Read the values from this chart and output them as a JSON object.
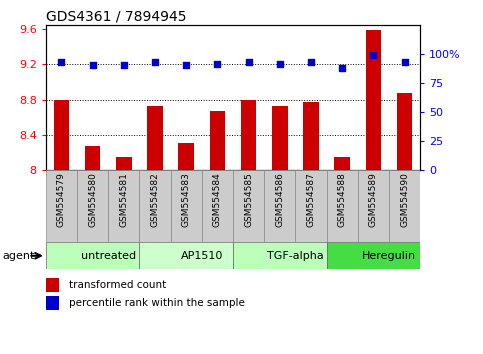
{
  "title": "GDS4361 / 7894945",
  "samples": [
    "GSM554579",
    "GSM554580",
    "GSM554581",
    "GSM554582",
    "GSM554583",
    "GSM554584",
    "GSM554585",
    "GSM554586",
    "GSM554587",
    "GSM554588",
    "GSM554589",
    "GSM554590"
  ],
  "bar_values": [
    8.8,
    8.27,
    8.15,
    8.73,
    8.31,
    8.67,
    8.79,
    8.73,
    8.77,
    8.15,
    9.59,
    8.88
  ],
  "blue_dot_values": [
    93,
    90,
    90,
    93,
    90,
    91,
    93,
    91,
    93,
    88,
    99,
    93
  ],
  "bar_color": "#cc0000",
  "dot_color": "#0000cc",
  "ylim_left": [
    8.0,
    9.65
  ],
  "ylim_right": [
    0,
    125
  ],
  "yticks_left": [
    8.0,
    8.4,
    8.8,
    9.2,
    9.6
  ],
  "ytick_labels_left": [
    "8",
    "8.4",
    "8.8",
    "9.2",
    "9.6"
  ],
  "yticks_right": [
    0,
    25,
    50,
    75,
    100
  ],
  "ytick_labels_right": [
    "0",
    "25",
    "50",
    "75",
    "100%"
  ],
  "grid_values": [
    8.4,
    8.8,
    9.2
  ],
  "groups": [
    {
      "label": "untreated",
      "start": 0,
      "end": 3,
      "color": "#bbffbb"
    },
    {
      "label": "AP1510",
      "start": 3,
      "end": 6,
      "color": "#ccffcc"
    },
    {
      "label": "TGF-alpha",
      "start": 6,
      "end": 9,
      "color": "#bbffbb"
    },
    {
      "label": "Heregulin",
      "start": 9,
      "end": 12,
      "color": "#44dd44"
    }
  ],
  "legend_bar_label": "transformed count",
  "legend_dot_label": "percentile rank within the sample",
  "agent_label": "agent",
  "background_color": "#ffffff",
  "bar_width": 0.5,
  "label_box_color": "#cccccc",
  "label_box_color2": "#dddddd"
}
